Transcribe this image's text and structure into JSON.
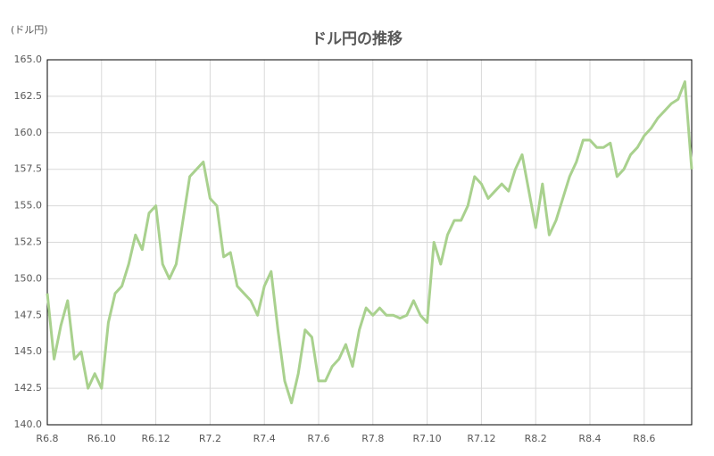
{
  "chart_data": {
    "type": "line",
    "title": "ドル円の推移",
    "unit_label": "(ドル円)",
    "categories": [
      "R6.8",
      null,
      null,
      null,
      null,
      null,
      null,
      null,
      "R6.10",
      null,
      null,
      null,
      null,
      null,
      null,
      null,
      "R6.12",
      null,
      null,
      null,
      null,
      null,
      null,
      null,
      "R7.2",
      null,
      null,
      null,
      null,
      null,
      null,
      null,
      "R7.4",
      null,
      null,
      null,
      null,
      null,
      null,
      null,
      "R7.6",
      null,
      null,
      null,
      null,
      null,
      null,
      null,
      "R7.8",
      null,
      null,
      null,
      null,
      null,
      null,
      null,
      "R7.10",
      null,
      null,
      null,
      null,
      null,
      null,
      null,
      "R7.12",
      null,
      null,
      null,
      null,
      null,
      null,
      null,
      "R8.2",
      null,
      null,
      null,
      null,
      null,
      null,
      null,
      "R8.4",
      null,
      null,
      null,
      null,
      null,
      null,
      null,
      "R8.6",
      null,
      null,
      null,
      null,
      null,
      null,
      null
    ],
    "values": [
      149,
      144.5,
      146.8,
      148.5,
      144.5,
      145,
      142.5,
      143.5,
      142.5,
      147,
      149,
      149.5,
      151,
      153,
      152,
      154.5,
      155,
      151,
      150,
      151,
      154,
      157,
      157.5,
      158,
      155.5,
      155,
      151.5,
      151.8,
      149.5,
      149,
      148.5,
      147.5,
      149.5,
      150.5,
      146.5,
      143,
      141.5,
      143.5,
      146.5,
      146,
      143,
      143,
      144,
      144.5,
      145.5,
      144,
      146.5,
      148,
      147.5,
      148,
      147.5,
      147.5,
      147.3,
      147.5,
      148.5,
      147.5,
      147,
      152.5,
      151,
      153,
      154,
      154,
      155,
      157,
      156.5,
      155.5,
      156,
      156.5,
      156,
      157.5,
      158.5,
      156,
      153.5,
      156.5,
      153,
      154,
      155.5,
      157,
      158,
      159.5,
      159.5,
      159,
      159,
      159.3,
      157,
      157.5,
      158.5,
      159,
      159.8,
      160.3,
      161,
      161.5,
      162,
      162.3,
      163.5,
      157.5
    ],
    "color": "#a9d18e",
    "ylim": [
      140,
      165
    ],
    "yticks": [
      {
        "value": 140,
        "label": "140.0"
      },
      {
        "value": 142.5,
        "label": "142.5"
      },
      {
        "value": 145,
        "label": "145.0"
      },
      {
        "value": 147.5,
        "label": "147.5"
      },
      {
        "value": 150,
        "label": "150.0"
      },
      {
        "value": 152.5,
        "label": "152.5"
      },
      {
        "value": 155,
        "label": "155.0"
      },
      {
        "value": 157.5,
        "label": "157.5"
      },
      {
        "value": 160,
        "label": "160.0"
      },
      {
        "value": 162.5,
        "label": "162.5"
      },
      {
        "value": 165,
        "label": "165.0"
      }
    ],
    "grid": true
  }
}
